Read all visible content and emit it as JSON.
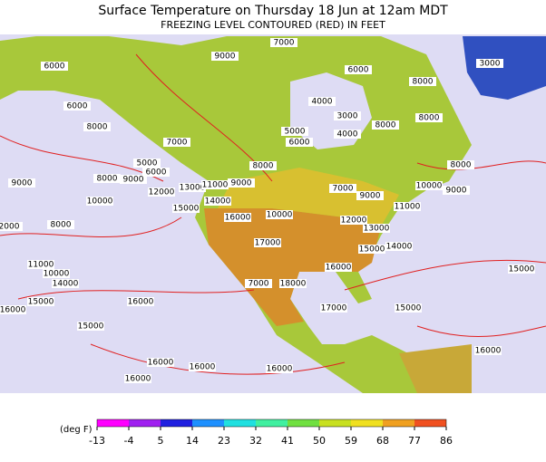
{
  "title": "Surface Temperature on Thursday 18 Jun at 12am MDT",
  "subtitle": "FREEZING LEVEL CONTOURED (RED) IN FEET",
  "colorbar": {
    "label": "(deg F)",
    "ticks": [
      -13,
      -4,
      5,
      14,
      23,
      32,
      41,
      50,
      59,
      68,
      77,
      86
    ],
    "colors": [
      "#ff00ff",
      "#a020f0",
      "#2020e0",
      "#1e90ff",
      "#20e0e0",
      "#40f0a0",
      "#70e040",
      "#c8e020",
      "#f0e020",
      "#f0a020",
      "#f05020"
    ]
  },
  "contour_labels": [
    7000,
    6000,
    9000,
    6000,
    8000,
    3000,
    4000,
    3000,
    8000,
    4000,
    8000,
    6000,
    8000,
    7000,
    5000,
    6000,
    5000,
    6000,
    8000,
    8000,
    9000,
    8000,
    9000,
    10000,
    9000,
    12000,
    13000,
    11000,
    9000,
    7000,
    9000,
    10000,
    14000,
    15000,
    11000,
    16000,
    10000,
    12000,
    13000,
    2000,
    8000,
    14000,
    17000,
    15000,
    11000,
    10000,
    14000,
    16000,
    15000,
    7000,
    18000,
    15000,
    16000,
    16000,
    17000,
    15000,
    15000,
    16000,
    16000,
    16000,
    16000,
    16000
  ]
}
